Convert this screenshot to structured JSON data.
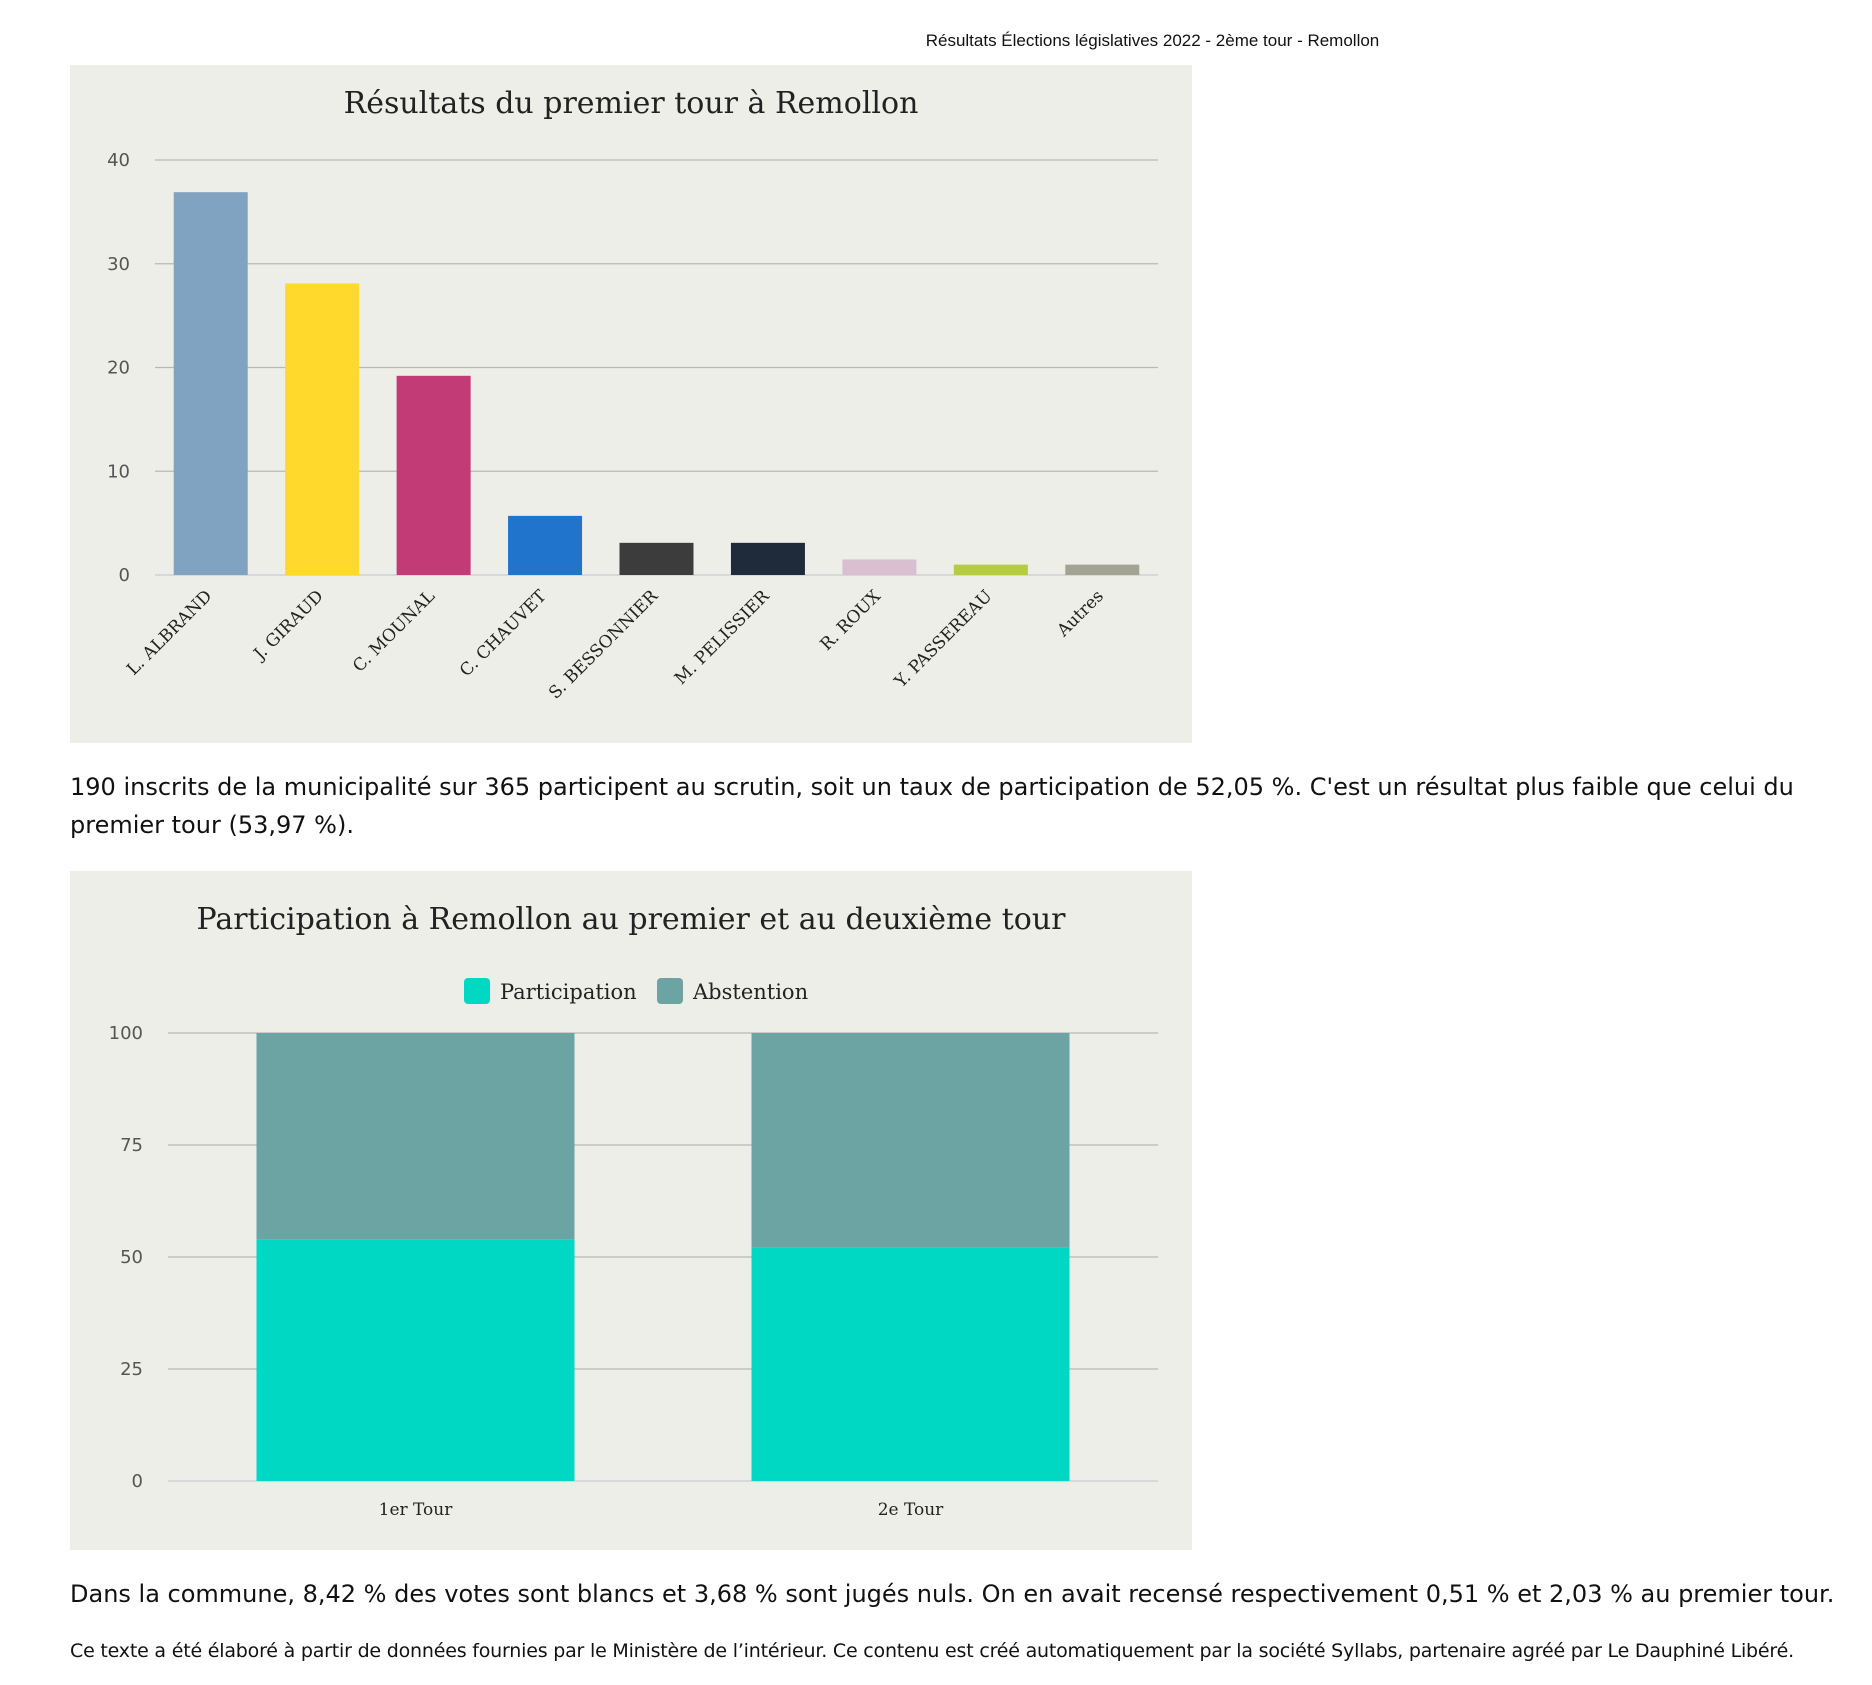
{
  "header": {
    "title": "Résultats Élections législatives 2022 - 2ème tour - Remollon"
  },
  "paragraphs": {
    "participation": "190 inscrits de la municipalité sur 365 participent au scrutin, soit un taux de participation de 52,05 %. C'est un résultat plus faible que celui du premier tour (53,97 %).",
    "blancs_nuls": "Dans la commune, 8,42 % des votes sont blancs et 3,68 % sont jugés nuls. On en avait recensé respectivement 0,51 % et 2,03 % au premier tour.",
    "source": "Ce texte a été élaboré à partir de données fournies par le Ministère de l’intérieur. Ce contenu est créé automatiquement par la société Syllabs, partenaire agréé par Le Dauphiné Libéré."
  },
  "chart_data": [
    {
      "type": "bar",
      "title": "Résultats du premier tour à Remollon",
      "categories": [
        "L. ALBRAND",
        "J. GIRAUD",
        "C. MOUNAL",
        "C. CHAUVET",
        "S. BESSONNIER",
        "M. PELISSIER",
        "R. ROUX",
        "Y. PASSEREAU",
        "Autres"
      ],
      "values": [
        36.9,
        28.1,
        19.2,
        5.7,
        3.1,
        3.1,
        1.5,
        1.0,
        1.0
      ],
      "colors": [
        "#7fa3c0",
        "#ffd92c",
        "#c23b77",
        "#2174cc",
        "#3c3c3c",
        "#1f2b3b",
        "#d8c0d2",
        "#b5cd3c",
        "#a3a394"
      ],
      "ylim": [
        0,
        40
      ],
      "yticks": [
        0,
        10,
        20,
        30,
        40
      ],
      "grid": true,
      "xlabel": "",
      "ylabel": ""
    },
    {
      "type": "bar",
      "stacked": true,
      "title": "Participation à Remollon au premier et au deuxième tour",
      "categories": [
        "1er Tour",
        "2e Tour"
      ],
      "series": [
        {
          "name": "Participation",
          "values": [
            53.97,
            52.05
          ],
          "color": "#00d8c4"
        },
        {
          "name": "Abstention",
          "values": [
            46.03,
            47.95
          ],
          "color": "#6ca3a3"
        }
      ],
      "ylim": [
        0,
        100
      ],
      "yticks": [
        0,
        25,
        50,
        75,
        100
      ],
      "legend": "top-center",
      "grid": true,
      "xlabel": "",
      "ylabel": ""
    }
  ]
}
